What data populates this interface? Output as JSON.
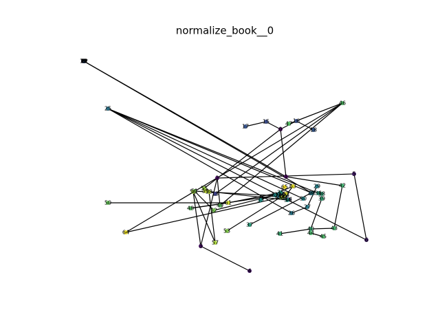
{
  "title": "normalize_book__0",
  "node_colormap": "viridis",
  "nodes": [
    {
      "label": "0"
    },
    {
      "label": "1"
    },
    {
      "label": "2"
    },
    {
      "label": "3"
    },
    {
      "label": "4"
    },
    {
      "label": "5"
    },
    {
      "label": "6"
    },
    {
      "label": "7"
    },
    {
      "label": "8"
    },
    {
      "label": "9"
    },
    {
      "label": "10"
    },
    {
      "label": "11"
    },
    {
      "label": "12"
    },
    {
      "label": "13"
    },
    {
      "label": "14"
    },
    {
      "label": "15"
    },
    {
      "label": "16"
    },
    {
      "label": "17"
    },
    {
      "label": "18"
    },
    {
      "label": "19"
    },
    {
      "label": "20"
    },
    {
      "label": "21"
    },
    {
      "label": "22"
    },
    {
      "label": "23"
    },
    {
      "label": "24"
    },
    {
      "label": "25"
    },
    {
      "label": "26"
    },
    {
      "label": "27"
    },
    {
      "label": "28"
    },
    {
      "label": "29"
    },
    {
      "label": "30"
    },
    {
      "label": "31"
    },
    {
      "label": "32"
    },
    {
      "label": "33"
    },
    {
      "label": "34"
    },
    {
      "label": "35"
    },
    {
      "label": "36"
    },
    {
      "label": "37"
    },
    {
      "label": "38"
    },
    {
      "label": "39"
    },
    {
      "label": "40"
    },
    {
      "label": "41"
    },
    {
      "label": "42"
    },
    {
      "label": "43"
    },
    {
      "label": "44"
    },
    {
      "label": "45"
    },
    {
      "label": "46"
    },
    {
      "label": "47"
    },
    {
      "label": "48"
    },
    {
      "label": "49"
    },
    {
      "label": "50"
    },
    {
      "label": "51"
    },
    {
      "label": "52"
    },
    {
      "label": "53"
    },
    {
      "label": "54"
    },
    {
      "label": "55"
    },
    {
      "label": "56"
    },
    {
      "label": "57"
    },
    {
      "label": "58"
    },
    {
      "label": "59"
    },
    {
      "label": "60"
    },
    {
      "label": "61"
    },
    {
      "label": "62"
    },
    {
      "label": "63"
    },
    {
      "label": "64"
    },
    {
      "label": "65"
    }
  ],
  "edges": [
    [
      3,
      4
    ],
    [
      2,
      3
    ],
    [
      2,
      5
    ],
    [
      5,
      6
    ],
    [
      0,
      1
    ],
    [
      0,
      15
    ],
    [
      15,
      17
    ],
    [
      0,
      16
    ],
    [
      16,
      18
    ],
    [
      0,
      55
    ],
    [
      46,
      47
    ],
    [
      46,
      16
    ],
    [
      46,
      64
    ],
    [
      46,
      13
    ],
    [
      46,
      49
    ],
    [
      7,
      1
    ],
    [
      8,
      28
    ],
    [
      25,
      30
    ],
    [
      25,
      6
    ],
    [
      25,
      36
    ],
    [
      25,
      26
    ],
    [
      25,
      28
    ],
    [
      50,
      61
    ],
    [
      64,
      54
    ],
    [
      48,
      61
    ],
    [
      48,
      20
    ],
    [
      41,
      40
    ],
    [
      40,
      43
    ],
    [
      43,
      42
    ],
    [
      44,
      45
    ],
    [
      29,
      27
    ],
    [
      27,
      26
    ],
    [
      38,
      39
    ],
    [
      56,
      57
    ],
    [
      2,
      49
    ],
    [
      51,
      52
    ],
    [
      52,
      31
    ],
    [
      53,
      62
    ],
    [
      57,
      58
    ],
    [
      61,
      35
    ],
    [
      37,
      24
    ],
    [
      1,
      42
    ],
    [
      33,
      63
    ],
    [
      59,
      34
    ],
    [
      55,
      13
    ],
    [
      56,
      3
    ],
    [
      63,
      23
    ],
    [
      39,
      40
    ],
    [
      51,
      21
    ]
  ]
}
